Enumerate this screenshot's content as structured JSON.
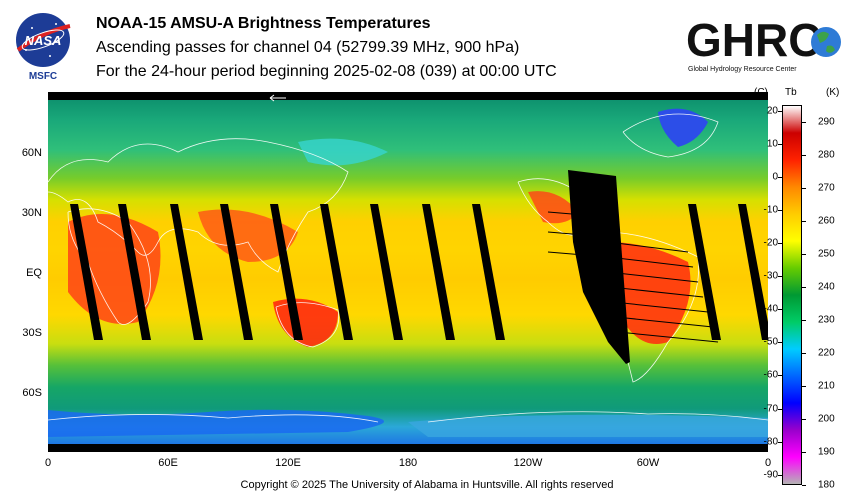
{
  "header": {
    "org_logo_text": "NASA",
    "org_sub_text": "MSFC",
    "title": "NOAA-15 AMSU-A Brightness Temperatures",
    "subtitle": "Ascending passes for channel 04 (52799.39 MHz, 900 hPa)",
    "period": "For the 24-hour period beginning 2025-02-08 (039) at 00:00 UTC",
    "partner_logo_text": "GHRC",
    "partner_logo_subtext": "Global Hydrology Resource Center"
  },
  "map": {
    "lat_labels": [
      "60N",
      "30N",
      "EQ",
      "30S",
      "60S"
    ],
    "lon_labels": [
      "0",
      "60E",
      "120E",
      "180",
      "120W",
      "60W",
      "0"
    ],
    "missing_data_color": "#000000"
  },
  "colorbar": {
    "c_header": "(C)",
    "tb_header": "Tb",
    "k_header": "(K)",
    "celsius_ticks": [
      "20",
      "10",
      "0",
      "-10",
      "-20",
      "-30",
      "-40",
      "-50",
      "-60",
      "-70",
      "-80",
      "-90"
    ],
    "kelvin_ticks": [
      "290",
      "280",
      "270",
      "260",
      "250",
      "240",
      "230",
      "220",
      "210",
      "200",
      "190",
      "180"
    ],
    "range_k": [
      180,
      295
    ],
    "colors": [
      "#b4b4b4",
      "#ff00ff",
      "#9900cc",
      "#0000ff",
      "#0066ff",
      "#00ccff",
      "#00cc66",
      "#009933",
      "#66cc00",
      "#ffff00",
      "#ffcc00",
      "#ff8800",
      "#ff2200",
      "#cc0000",
      "#ffffff"
    ]
  },
  "footer": {
    "copyright": "Copyright © 2025 The University of Alabama in Huntsville.  All rights reserved"
  }
}
